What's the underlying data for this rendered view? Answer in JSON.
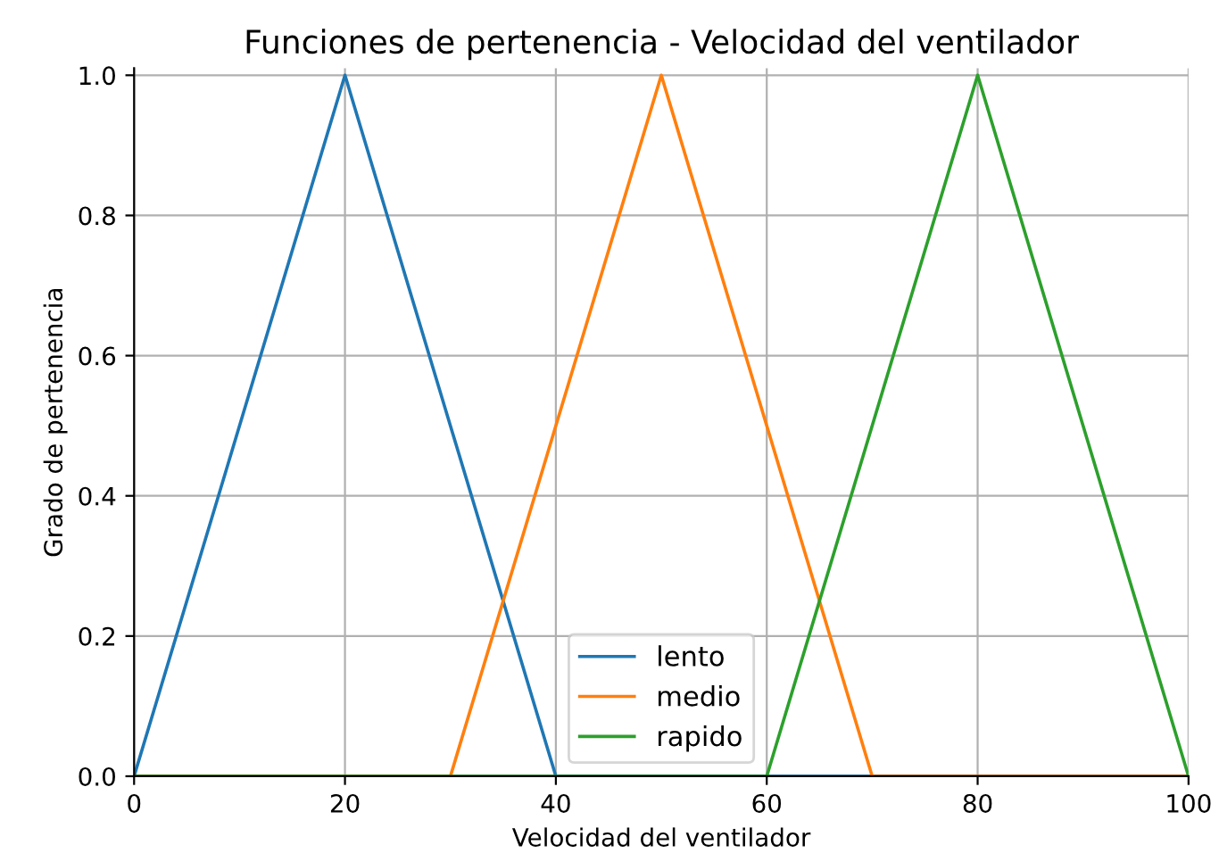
{
  "chart_data": {
    "type": "line",
    "title": "Funciones de pertenencia - Velocidad del ventilador",
    "xlabel": "Velocidad del ventilador",
    "ylabel": "Grado de pertenencia",
    "series": [
      {
        "name": "lento",
        "color": "#1f77b4",
        "x": [
          0,
          20,
          40,
          100
        ],
        "values": [
          0,
          1,
          0,
          0
        ]
      },
      {
        "name": "medio",
        "color": "#ff7f0e",
        "x": [
          0,
          30,
          50,
          70,
          100
        ],
        "values": [
          0,
          0,
          1,
          0,
          0
        ]
      },
      {
        "name": "rapido",
        "color": "#2ca02c",
        "x": [
          0,
          60,
          80,
          100
        ],
        "values": [
          0,
          0,
          1,
          0
        ]
      }
    ],
    "xlim": [
      0,
      100
    ],
    "ylim": [
      0,
      1.01
    ],
    "xticks": [
      0,
      20,
      40,
      60,
      80,
      100
    ],
    "yticks": [
      {
        "value": 0,
        "label": "0.0"
      },
      {
        "value": 0.2,
        "label": "0.2"
      },
      {
        "value": 0.4,
        "label": "0.4"
      },
      {
        "value": 0.6,
        "label": "0.6"
      },
      {
        "value": 0.8,
        "label": "0.8"
      },
      {
        "value": 1.0,
        "label": "1.0"
      }
    ],
    "grid": true,
    "legend": "bottom"
  }
}
